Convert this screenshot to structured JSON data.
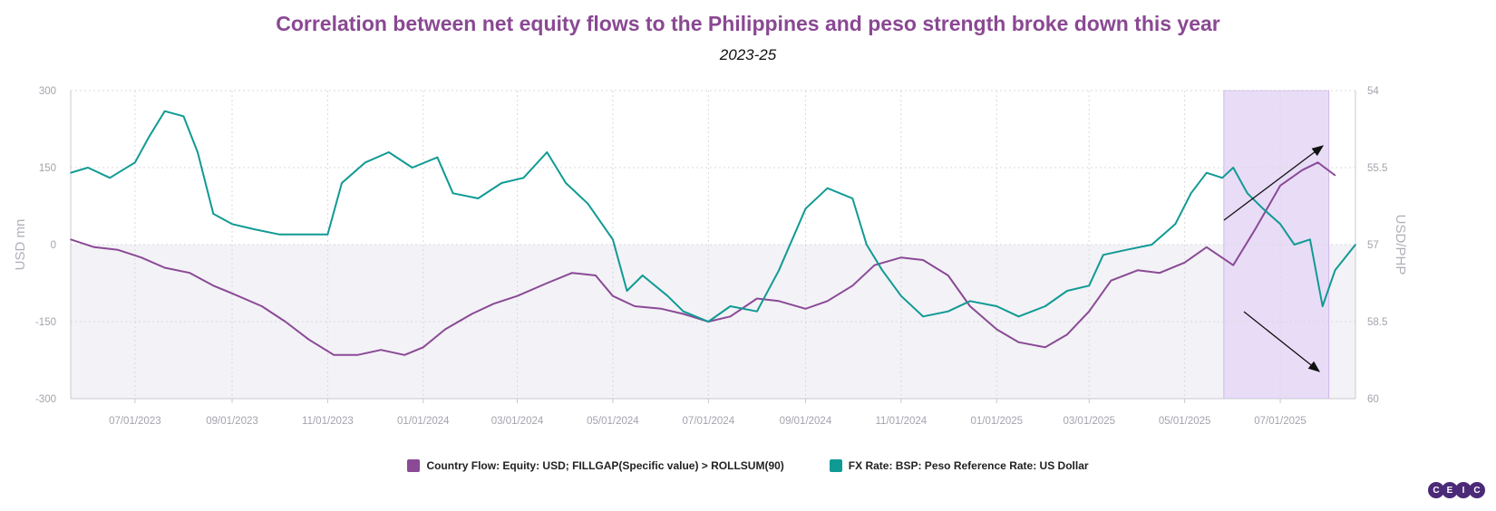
{
  "chart_data": {
    "type": "line",
    "title": "Correlation between net equity flows to the Philippines and peso strength broke down this year",
    "subtitle": "2023-25",
    "ylabel_left": "USD mn",
    "ylabel_right": "USD/PHP",
    "ylim_left": [
      -300,
      300
    ],
    "yticks_left": [
      "300",
      "150",
      "0",
      "-150",
      "-300"
    ],
    "ylim_right": [
      60,
      54
    ],
    "right_axis_inverted": true,
    "yticks_right": [
      "54",
      "55.5",
      "57",
      "58.5",
      "60"
    ],
    "xlim": [
      "2023-05-21",
      "2025-08-18"
    ],
    "xticks": [
      "07/01/2023",
      "09/01/2023",
      "11/01/2023",
      "01/01/2024",
      "03/01/2024",
      "05/01/2024",
      "07/01/2024",
      "09/01/2024",
      "11/01/2024",
      "01/01/2025",
      "03/01/2025",
      "05/01/2025",
      "07/01/2025"
    ],
    "grid": true,
    "highlight_region": [
      "2025-05-26",
      "2025-08-01"
    ],
    "series": [
      {
        "name": "Country Flow: Equity: USD; FILLGAP(Specific value) > ROLLSUM(90)",
        "axis": "left",
        "color": "#8a4a96",
        "points": [
          [
            "2023-05-21",
            10
          ],
          [
            "2023-06-05",
            -5
          ],
          [
            "2023-06-20",
            -10
          ],
          [
            "2023-07-05",
            -25
          ],
          [
            "2023-07-20",
            -45
          ],
          [
            "2023-08-05",
            -55
          ],
          [
            "2023-08-20",
            -80
          ],
          [
            "2023-09-01",
            -95
          ],
          [
            "2023-09-20",
            -120
          ],
          [
            "2023-10-05",
            -150
          ],
          [
            "2023-10-20",
            -185
          ],
          [
            "2023-11-05",
            -215
          ],
          [
            "2023-11-20",
            -215
          ],
          [
            "2023-12-05",
            -205
          ],
          [
            "2023-12-20",
            -215
          ],
          [
            "2024-01-01",
            -200
          ],
          [
            "2024-01-15",
            -165
          ],
          [
            "2024-02-01",
            -135
          ],
          [
            "2024-02-15",
            -115
          ],
          [
            "2024-03-01",
            -100
          ],
          [
            "2024-03-20",
            -75
          ],
          [
            "2024-04-05",
            -55
          ],
          [
            "2024-04-20",
            -60
          ],
          [
            "2024-05-01",
            -100
          ],
          [
            "2024-05-15",
            -120
          ],
          [
            "2024-06-01",
            -125
          ],
          [
            "2024-06-15",
            -135
          ],
          [
            "2024-07-01",
            -150
          ],
          [
            "2024-07-15",
            -140
          ],
          [
            "2024-08-01",
            -105
          ],
          [
            "2024-08-15",
            -110
          ],
          [
            "2024-09-01",
            -125
          ],
          [
            "2024-09-15",
            -110
          ],
          [
            "2024-10-01",
            -80
          ],
          [
            "2024-10-15",
            -40
          ],
          [
            "2024-11-01",
            -25
          ],
          [
            "2024-11-15",
            -30
          ],
          [
            "2024-12-01",
            -60
          ],
          [
            "2024-12-15",
            -120
          ],
          [
            "2025-01-01",
            -165
          ],
          [
            "2025-01-15",
            -190
          ],
          [
            "2025-02-01",
            -200
          ],
          [
            "2025-02-15",
            -175
          ],
          [
            "2025-03-01",
            -130
          ],
          [
            "2025-03-15",
            -70
          ],
          [
            "2025-04-01",
            -50
          ],
          [
            "2025-04-15",
            -55
          ],
          [
            "2025-05-01",
            -35
          ],
          [
            "2025-05-15",
            -5
          ],
          [
            "2025-06-01",
            -40
          ],
          [
            "2025-06-15",
            30
          ],
          [
            "2025-07-01",
            115
          ],
          [
            "2025-07-15",
            145
          ],
          [
            "2025-07-25",
            160
          ],
          [
            "2025-08-05",
            135
          ]
        ]
      },
      {
        "name": "FX Rate: BSP: Peso Reference Rate: US Dollar",
        "axis": "right",
        "color": "#109a94",
        "points": [
          [
            "2023-05-21",
            55.6
          ],
          [
            "2023-06-01",
            55.5
          ],
          [
            "2023-06-15",
            55.7
          ],
          [
            "2023-07-01",
            55.4
          ],
          [
            "2023-07-10",
            54.9
          ],
          [
            "2023-07-20",
            54.4
          ],
          [
            "2023-08-01",
            54.5
          ],
          [
            "2023-08-10",
            55.2
          ],
          [
            "2023-08-20",
            56.4
          ],
          [
            "2023-09-01",
            56.6
          ],
          [
            "2023-09-15",
            56.7
          ],
          [
            "2023-10-01",
            56.8
          ],
          [
            "2023-10-15",
            56.8
          ],
          [
            "2023-11-01",
            56.8
          ],
          [
            "2023-11-10",
            55.8
          ],
          [
            "2023-11-25",
            55.4
          ],
          [
            "2023-12-10",
            55.2
          ],
          [
            "2023-12-25",
            55.5
          ],
          [
            "2024-01-10",
            55.3
          ],
          [
            "2024-01-20",
            56.0
          ],
          [
            "2024-02-05",
            56.1
          ],
          [
            "2024-02-20",
            55.8
          ],
          [
            "2024-03-05",
            55.7
          ],
          [
            "2024-03-20",
            55.2
          ],
          [
            "2024-04-01",
            55.8
          ],
          [
            "2024-04-15",
            56.2
          ],
          [
            "2024-05-01",
            56.9
          ],
          [
            "2024-05-10",
            57.9
          ],
          [
            "2024-05-20",
            57.6
          ],
          [
            "2024-06-05",
            58.0
          ],
          [
            "2024-06-15",
            58.3
          ],
          [
            "2024-07-01",
            58.5
          ],
          [
            "2024-07-15",
            58.2
          ],
          [
            "2024-08-01",
            58.3
          ],
          [
            "2024-08-15",
            57.5
          ],
          [
            "2024-09-01",
            56.3
          ],
          [
            "2024-09-15",
            55.9
          ],
          [
            "2024-10-01",
            56.1
          ],
          [
            "2024-10-10",
            57.0
          ],
          [
            "2024-10-20",
            57.5
          ],
          [
            "2024-11-01",
            58.0
          ],
          [
            "2024-11-15",
            58.4
          ],
          [
            "2024-12-01",
            58.3
          ],
          [
            "2024-12-15",
            58.1
          ],
          [
            "2025-01-01",
            58.2
          ],
          [
            "2025-01-15",
            58.4
          ],
          [
            "2025-02-01",
            58.2
          ],
          [
            "2025-02-15",
            57.9
          ],
          [
            "2025-03-01",
            57.8
          ],
          [
            "2025-03-10",
            57.2
          ],
          [
            "2025-03-25",
            57.1
          ],
          [
            "2025-04-10",
            57.0
          ],
          [
            "2025-04-25",
            56.6
          ],
          [
            "2025-05-05",
            56.0
          ],
          [
            "2025-05-15",
            55.6
          ],
          [
            "2025-05-25",
            55.7
          ],
          [
            "2025-06-01",
            55.5
          ],
          [
            "2025-06-10",
            56.0
          ],
          [
            "2025-06-20",
            56.3
          ],
          [
            "2025-07-01",
            56.6
          ],
          [
            "2025-07-10",
            57.0
          ],
          [
            "2025-07-20",
            56.9
          ],
          [
            "2025-07-28",
            58.2
          ],
          [
            "2025-08-05",
            57.5
          ],
          [
            "2025-08-18",
            57.0
          ]
        ]
      }
    ]
  },
  "legend": [
    {
      "label": "Country Flow: Equity: USD; FILLGAP(Specific value) > ROLLSUM(90)",
      "color": "#8a4a96"
    },
    {
      "label": "FX Rate: BSP: Peso Reference Rate: US Dollar",
      "color": "#109a94"
    }
  ],
  "logo": {
    "letters": [
      "C",
      "E",
      "I",
      "C"
    ],
    "color": "#4b2a78"
  }
}
